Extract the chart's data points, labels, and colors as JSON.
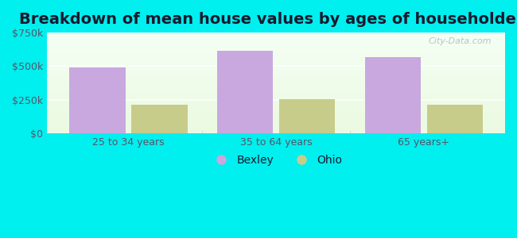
{
  "title": "Breakdown of mean house values by ages of householders",
  "categories": [
    "25 to 34 years",
    "35 to 64 years",
    "65 years+"
  ],
  "bexley_values": [
    490000,
    615000,
    570000
  ],
  "ohio_values": [
    215000,
    255000,
    210000
  ],
  "bexley_color": "#c9a8e0",
  "ohio_color": "#c8cc8a",
  "ylim": [
    0,
    750000
  ],
  "yticks": [
    0,
    250000,
    500000,
    750000
  ],
  "ytick_labels": [
    "$0",
    "$250k",
    "$500k",
    "$750k"
  ],
  "outer_bg": "#00EFEF",
  "plot_bg": "#e8fae8",
  "legend_labels": [
    "Bexley",
    "Ohio"
  ],
  "bar_width": 0.38,
  "title_fontsize": 14,
  "tick_fontsize": 9,
  "legend_fontsize": 10,
  "watermark": "City-Data.com",
  "title_color": "#1a1a2e",
  "tick_color": "#555566"
}
